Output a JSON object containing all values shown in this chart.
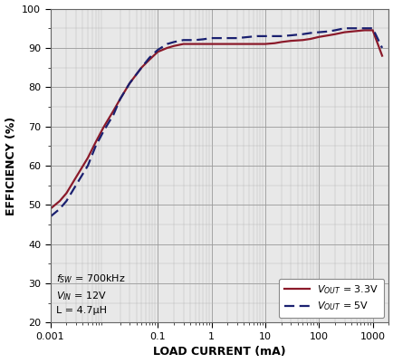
{
  "xlabel": "LOAD CURRENT (mA)",
  "ylabel": "EFFICIENCY (%)",
  "xlim": [
    0.001,
    2000
  ],
  "ylim": [
    20,
    100
  ],
  "yticks": [
    20,
    30,
    40,
    50,
    60,
    70,
    80,
    90,
    100
  ],
  "xtick_positions": [
    0.001,
    0.1,
    1,
    10,
    100,
    1000
  ],
  "xtick_labels": [
    "0.001",
    "0.1",
    "1",
    "10",
    "100",
    "1000"
  ],
  "line_33v_color": "#8B1A2A",
  "line_5v_color": "#1A2070",
  "background_color": "#E8E8E8",
  "x_33v": [
    0.001,
    0.0015,
    0.002,
    0.003,
    0.005,
    0.007,
    0.01,
    0.015,
    0.02,
    0.03,
    0.05,
    0.07,
    0.1,
    0.15,
    0.2,
    0.3,
    0.5,
    0.7,
    1.0,
    1.5,
    2.0,
    3.0,
    5.0,
    7.0,
    10,
    15,
    20,
    30,
    50,
    70,
    100,
    150,
    200,
    300,
    500,
    700,
    1000,
    1500
  ],
  "y_33v": [
    49,
    51,
    53,
    57,
    62,
    66,
    70,
    74,
    77,
    81,
    85,
    87,
    89,
    90,
    90.5,
    91,
    91,
    91,
    91,
    91,
    91,
    91,
    91,
    91,
    91,
    91.2,
    91.5,
    91.8,
    92,
    92.3,
    92.8,
    93.2,
    93.5,
    94,
    94.3,
    94.5,
    94.5,
    88
  ],
  "x_5v": [
    0.001,
    0.0015,
    0.002,
    0.003,
    0.005,
    0.007,
    0.01,
    0.015,
    0.02,
    0.03,
    0.05,
    0.07,
    0.1,
    0.15,
    0.2,
    0.3,
    0.5,
    0.7,
    1.0,
    1.5,
    2.0,
    3.0,
    5.0,
    7.0,
    10,
    15,
    20,
    30,
    50,
    70,
    100,
    150,
    200,
    300,
    500,
    700,
    1000,
    1500
  ],
  "y_5v": [
    47,
    49,
    51,
    55,
    60,
    65,
    69,
    73,
    77,
    81,
    85,
    87.5,
    89.5,
    91,
    91.5,
    92,
    92,
    92.2,
    92.5,
    92.5,
    92.5,
    92.5,
    92.8,
    93,
    93,
    93,
    93,
    93.2,
    93.5,
    93.8,
    94,
    94.2,
    94.5,
    95,
    95,
    95,
    95,
    90
  ],
  "legend_33v": "$V_{OUT}$ = 3.3V",
  "legend_5v": "$V_{OUT}$ = 5V",
  "figsize": [
    4.35,
    4.01
  ],
  "dpi": 100
}
